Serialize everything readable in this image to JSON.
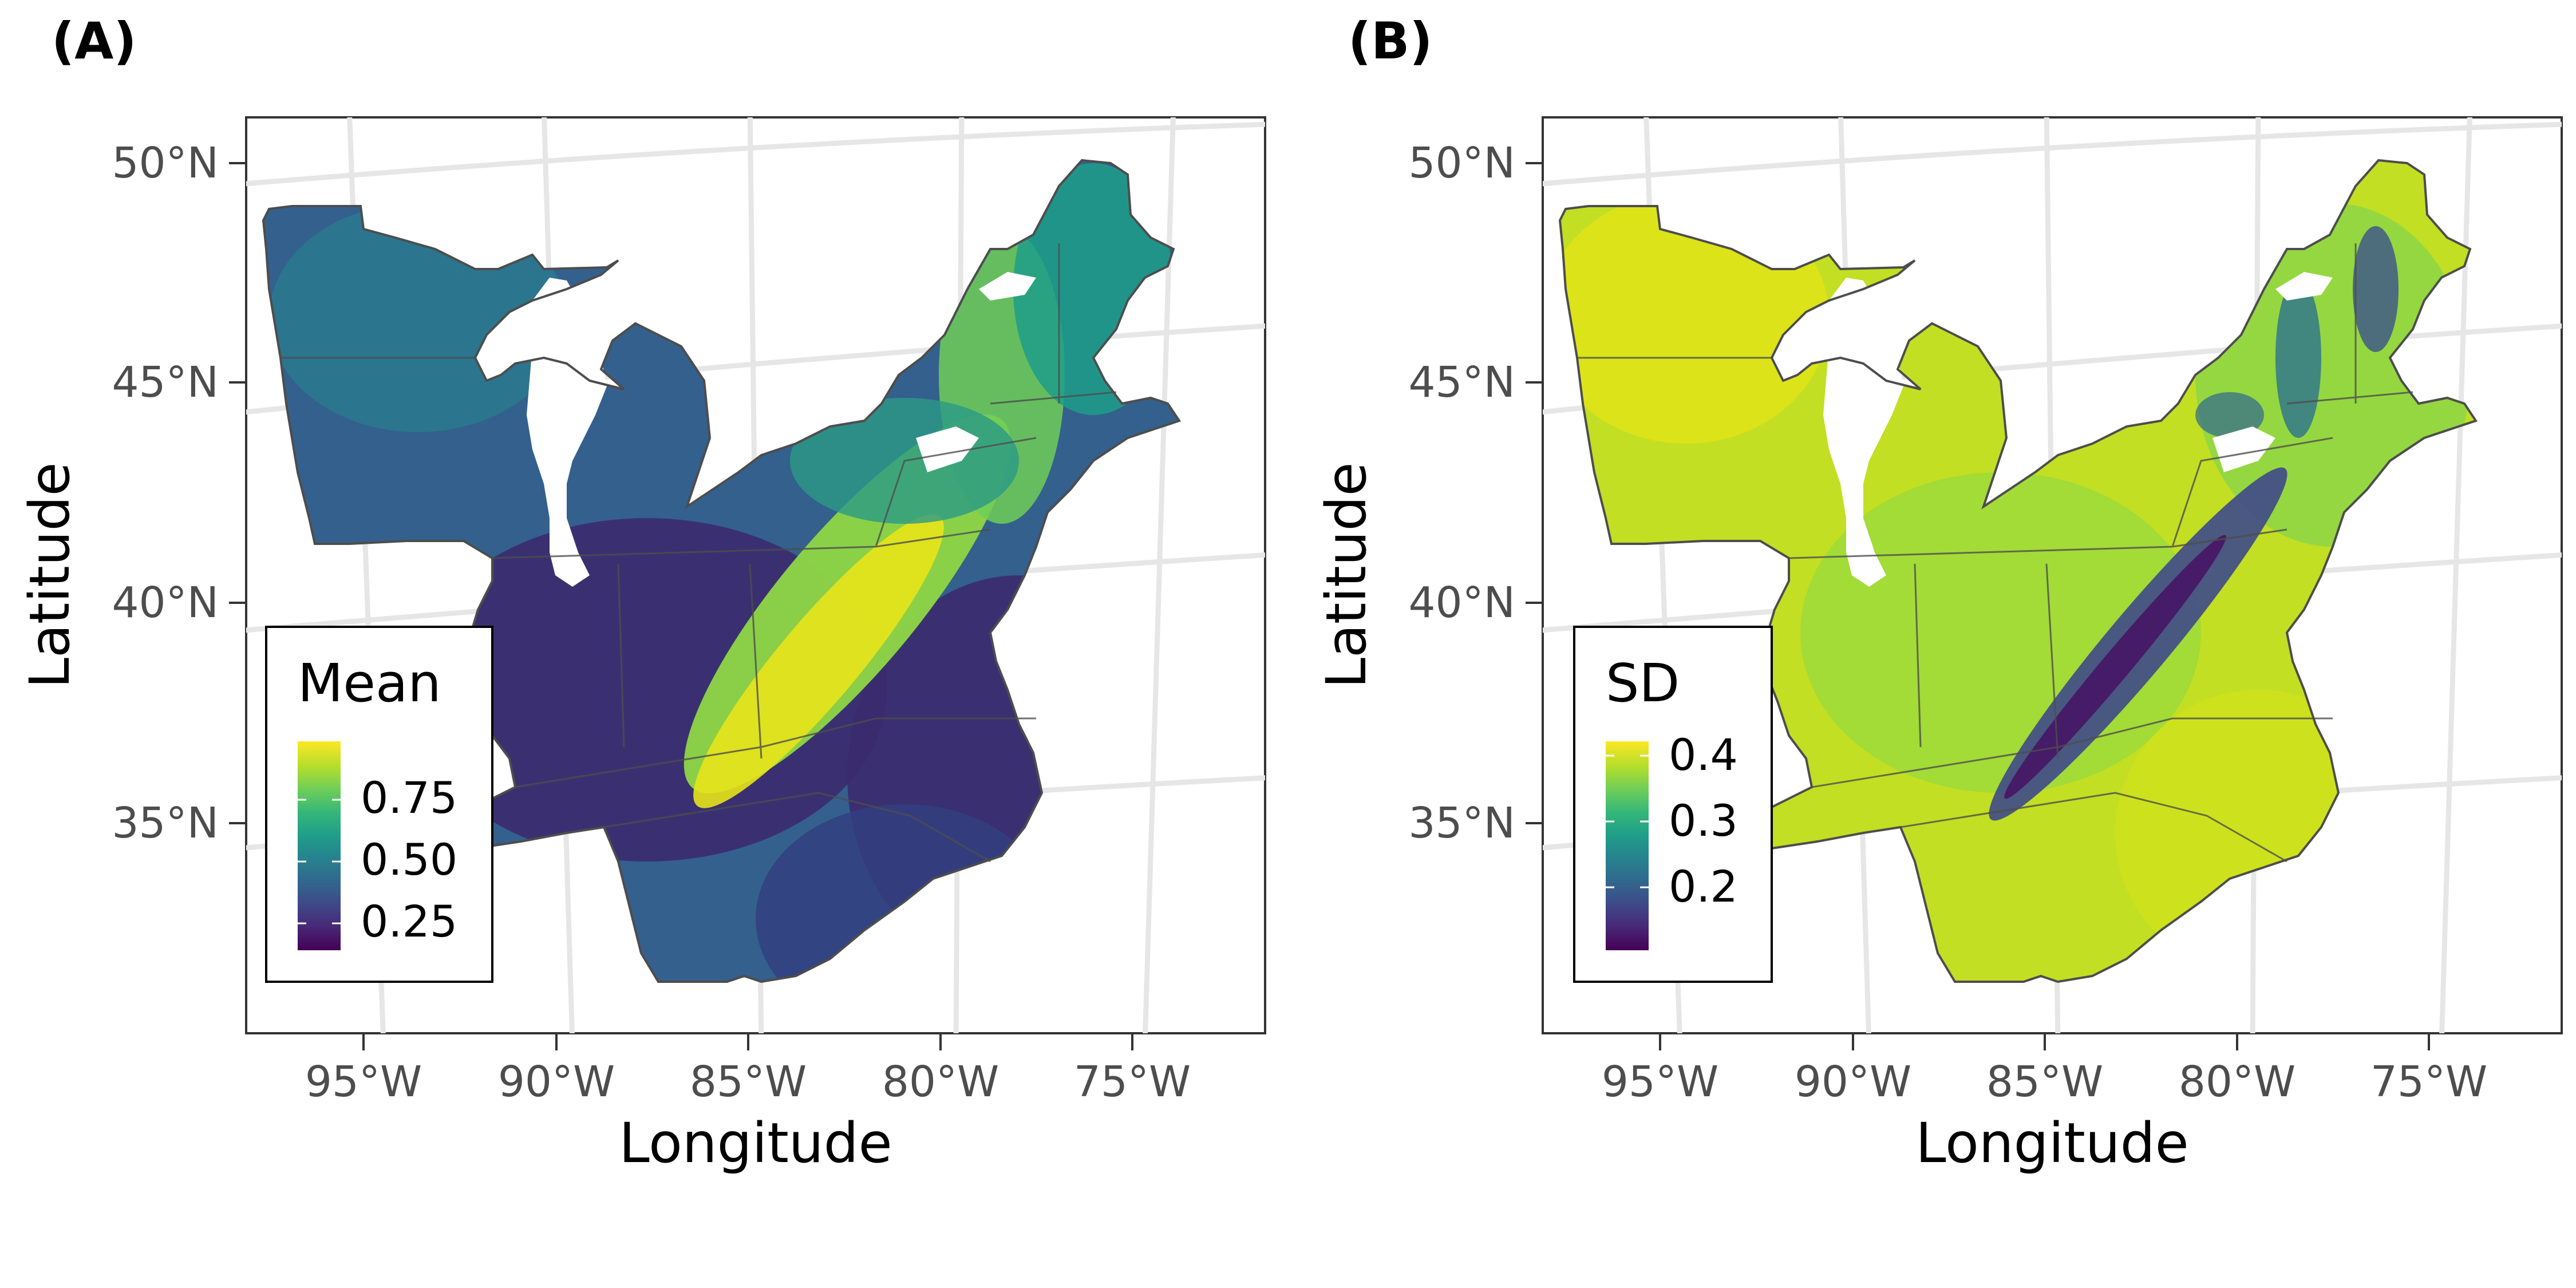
{
  "panels": [
    {
      "tag": "(A)",
      "legend": {
        "title": "Mean",
        "labels": [
          "0.75",
          "0.50",
          "0.25"
        ],
        "values": [
          0.75,
          0.5,
          0.25
        ],
        "range": [
          0.1,
          0.88
        ]
      },
      "colors": {
        "low": "#440154",
        "high": "#fde725"
      }
    },
    {
      "tag": "(B)",
      "legend": {
        "title": "SD",
        "labels": [
          "0.4",
          "0.3",
          "0.2"
        ],
        "values": [
          0.4,
          0.3,
          0.2
        ],
        "range": [
          0.12,
          0.42
        ]
      },
      "colors": {
        "low": "#440154",
        "high": "#fde725"
      }
    }
  ],
  "axes": {
    "xlabel": "Longitude",
    "ylabel": "Latitude",
    "xticks": [
      "95°W",
      "90°W",
      "85°W",
      "80°W",
      "75°W"
    ],
    "yticks": [
      "50°N",
      "45°N",
      "40°N",
      "35°N"
    ]
  },
  "colorscale": [
    "#440154",
    "#482777",
    "#3e4989",
    "#31688e",
    "#26828e",
    "#1f9e89",
    "#35b779",
    "#6ece58",
    "#b5de2b",
    "#fde725"
  ]
}
